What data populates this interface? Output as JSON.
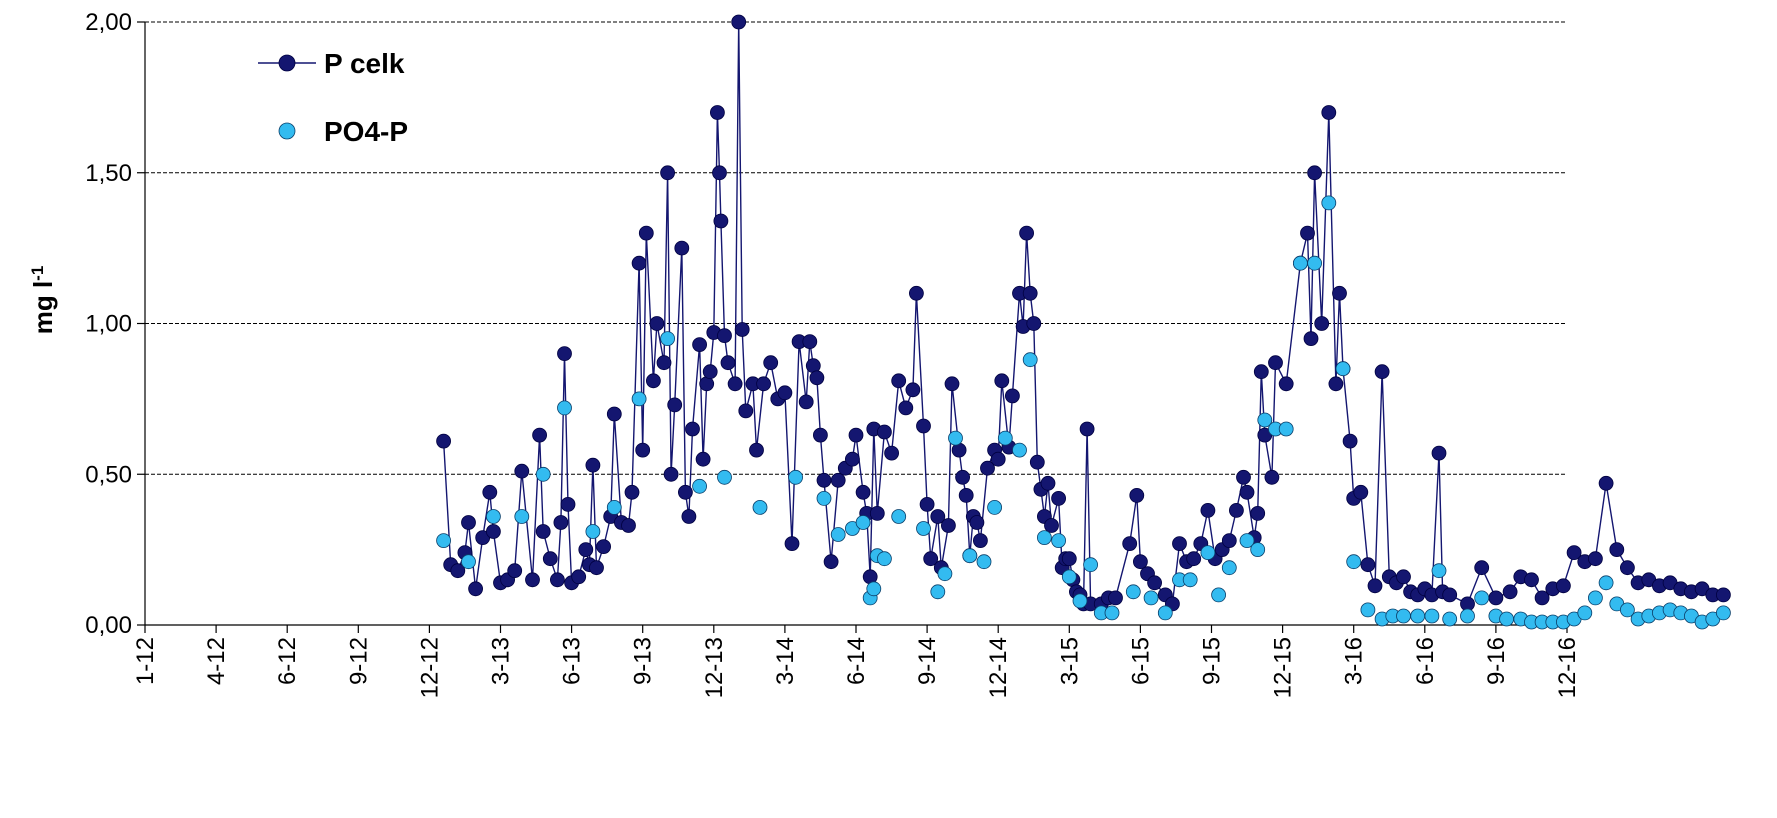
{
  "chart_data": {
    "type": "line",
    "ylabel": "mg l",
    "ylabel_superscript": "-1",
    "ylim": [
      0,
      2
    ],
    "y_ticks": [
      "0,00",
      "0,50",
      "1,00",
      "1,50",
      "2,00"
    ],
    "y_tick_values": [
      0,
      0.5,
      1,
      1.5,
      2
    ],
    "x_ticks": [
      "1-12",
      "4-12",
      "6-12",
      "9-12",
      "12-12",
      "3-13",
      "6-13",
      "9-13",
      "12-13",
      "3-14",
      "6-14",
      "9-14",
      "12-14",
      "3-15",
      "6-15",
      "9-15",
      "12-15",
      "3-16",
      "6-16",
      "9-16",
      "12-16"
    ],
    "grid": "horizontal dashed at 0.5 intervals",
    "legend": "top-left",
    "colors": {
      "p_celk": "#141670",
      "po4_p": "#33bbf0"
    },
    "series": [
      {
        "name": "P celk",
        "style": "line-with-markers",
        "points": [
          [
            4.2,
            0.61
          ],
          [
            4.3,
            0.2
          ],
          [
            4.4,
            0.18
          ],
          [
            4.5,
            0.24
          ],
          [
            4.55,
            0.34
          ],
          [
            4.65,
            0.12
          ],
          [
            4.75,
            0.29
          ],
          [
            4.85,
            0.44
          ],
          [
            4.9,
            0.31
          ],
          [
            5.0,
            0.14
          ],
          [
            5.1,
            0.15
          ],
          [
            5.2,
            0.18
          ],
          [
            5.3,
            0.51
          ],
          [
            5.45,
            0.15
          ],
          [
            5.55,
            0.63
          ],
          [
            5.6,
            0.31
          ],
          [
            5.7,
            0.22
          ],
          [
            5.8,
            0.15
          ],
          [
            5.85,
            0.34
          ],
          [
            5.9,
            0.9
          ],
          [
            5.95,
            0.4
          ],
          [
            6.0,
            0.14
          ],
          [
            6.1,
            0.16
          ],
          [
            6.2,
            0.25
          ],
          [
            6.25,
            0.2
          ],
          [
            6.3,
            0.53
          ],
          [
            6.35,
            0.19
          ],
          [
            6.45,
            0.26
          ],
          [
            6.55,
            0.36
          ],
          [
            6.6,
            0.7
          ],
          [
            6.7,
            0.34
          ],
          [
            6.8,
            0.33
          ],
          [
            6.85,
            0.44
          ],
          [
            6.95,
            1.2
          ],
          [
            7.0,
            0.58
          ],
          [
            7.05,
            1.3
          ],
          [
            7.15,
            0.81
          ],
          [
            7.2,
            1.0
          ],
          [
            7.3,
            0.87
          ],
          [
            7.35,
            1.5
          ],
          [
            7.4,
            0.5
          ],
          [
            7.45,
            0.73
          ],
          [
            7.55,
            1.25
          ],
          [
            7.6,
            0.44
          ],
          [
            7.65,
            0.36
          ],
          [
            7.7,
            0.65
          ],
          [
            7.8,
            0.93
          ],
          [
            7.85,
            0.55
          ],
          [
            7.9,
            0.8
          ],
          [
            7.95,
            0.84
          ],
          [
            8.0,
            0.97
          ],
          [
            8.05,
            1.7
          ],
          [
            8.08,
            1.5
          ],
          [
            8.1,
            1.34
          ],
          [
            8.15,
            0.96
          ],
          [
            8.2,
            0.87
          ],
          [
            8.3,
            0.8
          ],
          [
            8.35,
            2.0
          ],
          [
            8.4,
            0.98
          ],
          [
            8.45,
            0.71
          ],
          [
            8.55,
            0.8
          ],
          [
            8.6,
            0.58
          ],
          [
            8.7,
            0.8
          ],
          [
            8.8,
            0.87
          ],
          [
            8.9,
            0.75
          ],
          [
            9.0,
            0.77
          ],
          [
            9.1,
            0.27
          ],
          [
            9.2,
            0.94
          ],
          [
            9.3,
            0.74
          ],
          [
            9.35,
            0.94
          ],
          [
            9.4,
            0.86
          ],
          [
            9.45,
            0.82
          ],
          [
            9.5,
            0.63
          ],
          [
            9.55,
            0.48
          ],
          [
            9.65,
            0.21
          ],
          [
            9.75,
            0.48
          ],
          [
            9.85,
            0.52
          ],
          [
            9.95,
            0.55
          ],
          [
            10.0,
            0.63
          ],
          [
            10.1,
            0.44
          ],
          [
            10.15,
            0.37
          ],
          [
            10.2,
            0.16
          ],
          [
            10.25,
            0.65
          ],
          [
            10.3,
            0.37
          ],
          [
            10.4,
            0.64
          ],
          [
            10.5,
            0.57
          ],
          [
            10.6,
            0.81
          ],
          [
            10.7,
            0.72
          ],
          [
            10.8,
            0.78
          ],
          [
            10.85,
            1.1
          ],
          [
            10.95,
            0.66
          ],
          [
            11.0,
            0.4
          ],
          [
            11.05,
            0.22
          ],
          [
            11.15,
            0.36
          ],
          [
            11.2,
            0.19
          ],
          [
            11.3,
            0.33
          ],
          [
            11.35,
            0.8
          ],
          [
            11.45,
            0.58
          ],
          [
            11.5,
            0.49
          ],
          [
            11.55,
            0.43
          ],
          [
            11.6,
            0.23
          ],
          [
            11.65,
            0.36
          ],
          [
            11.7,
            0.34
          ],
          [
            11.75,
            0.28
          ],
          [
            11.85,
            0.52
          ],
          [
            11.95,
            0.58
          ],
          [
            12.0,
            0.55
          ],
          [
            12.05,
            0.81
          ],
          [
            12.15,
            0.59
          ],
          [
            12.2,
            0.76
          ],
          [
            12.3,
            1.1
          ],
          [
            12.35,
            0.99
          ],
          [
            12.4,
            1.3
          ],
          [
            12.45,
            1.1
          ],
          [
            12.5,
            1.0
          ],
          [
            12.55,
            0.54
          ],
          [
            12.6,
            0.45
          ],
          [
            12.65,
            0.36
          ],
          [
            12.7,
            0.47
          ],
          [
            12.75,
            0.33
          ],
          [
            12.85,
            0.42
          ],
          [
            12.9,
            0.19
          ],
          [
            12.95,
            0.22
          ],
          [
            13.0,
            0.22
          ],
          [
            13.05,
            0.15
          ],
          [
            13.1,
            0.11
          ],
          [
            13.15,
            0.1
          ],
          [
            13.2,
            0.07
          ],
          [
            13.25,
            0.65
          ],
          [
            13.3,
            0.07
          ],
          [
            13.45,
            0.07
          ],
          [
            13.55,
            0.09
          ],
          [
            13.65,
            0.09
          ],
          [
            13.85,
            0.27
          ],
          [
            13.95,
            0.43
          ],
          [
            14.0,
            0.21
          ],
          [
            14.1,
            0.17
          ],
          [
            14.2,
            0.14
          ],
          [
            14.35,
            0.1
          ],
          [
            14.45,
            0.07
          ],
          [
            14.55,
            0.27
          ],
          [
            14.65,
            0.21
          ],
          [
            14.75,
            0.22
          ],
          [
            14.85,
            0.27
          ],
          [
            14.95,
            0.38
          ],
          [
            15.05,
            0.22
          ],
          [
            15.15,
            0.25
          ],
          [
            15.25,
            0.28
          ],
          [
            15.35,
            0.38
          ],
          [
            15.45,
            0.49
          ],
          [
            15.5,
            0.44
          ],
          [
            15.6,
            0.29
          ],
          [
            15.65,
            0.37
          ],
          [
            15.7,
            0.84
          ],
          [
            15.75,
            0.63
          ],
          [
            15.85,
            0.49
          ],
          [
            15.9,
            0.87
          ],
          [
            16.05,
            0.8
          ],
          [
            16.25,
            1.2
          ],
          [
            16.35,
            1.3
          ],
          [
            16.4,
            0.95
          ],
          [
            16.45,
            1.5
          ],
          [
            16.55,
            1.0
          ],
          [
            16.65,
            1.7
          ],
          [
            16.75,
            0.8
          ],
          [
            16.8,
            1.1
          ],
          [
            16.85,
            0.85
          ],
          [
            16.95,
            0.61
          ],
          [
            17.0,
            0.42
          ],
          [
            17.1,
            0.44
          ],
          [
            17.2,
            0.2
          ],
          [
            17.3,
            0.13
          ],
          [
            17.4,
            0.84
          ],
          [
            17.5,
            0.16
          ],
          [
            17.6,
            0.14
          ],
          [
            17.7,
            0.16
          ],
          [
            17.8,
            0.11
          ],
          [
            17.9,
            0.1
          ],
          [
            18.0,
            0.12
          ],
          [
            18.1,
            0.1
          ],
          [
            18.2,
            0.57
          ],
          [
            18.25,
            0.11
          ],
          [
            18.35,
            0.1
          ],
          [
            18.6,
            0.07
          ],
          [
            18.8,
            0.19
          ],
          [
            19.0,
            0.09
          ],
          [
            19.2,
            0.11
          ],
          [
            19.35,
            0.16
          ],
          [
            19.5,
            0.15
          ],
          [
            19.65,
            0.09
          ],
          [
            19.8,
            0.12
          ],
          [
            19.95,
            0.13
          ],
          [
            20.1,
            0.24
          ],
          [
            20.25,
            0.21
          ],
          [
            20.4,
            0.22
          ],
          [
            20.55,
            0.47
          ],
          [
            20.7,
            0.25
          ],
          [
            20.85,
            0.19
          ],
          [
            21.0,
            0.14
          ],
          [
            21.15,
            0.15
          ],
          [
            21.3,
            0.13
          ],
          [
            21.45,
            0.14
          ],
          [
            21.6,
            0.12
          ],
          [
            21.75,
            0.11
          ],
          [
            21.9,
            0.12
          ],
          [
            22.05,
            0.1
          ],
          [
            22.2,
            0.1
          ]
        ]
      },
      {
        "name": "PO4-P",
        "style": "markers-only",
        "points": [
          [
            4.2,
            0.28
          ],
          [
            4.55,
            0.21
          ],
          [
            4.9,
            0.36
          ],
          [
            5.3,
            0.36
          ],
          [
            5.6,
            0.5
          ],
          [
            5.9,
            0.72
          ],
          [
            6.3,
            0.31
          ],
          [
            6.6,
            0.39
          ],
          [
            6.95,
            0.75
          ],
          [
            7.35,
            0.95
          ],
          [
            7.8,
            0.46
          ],
          [
            8.15,
            0.49
          ],
          [
            8.65,
            0.39
          ],
          [
            9.15,
            0.49
          ],
          [
            9.55,
            0.42
          ],
          [
            9.75,
            0.3
          ],
          [
            9.95,
            0.32
          ],
          [
            10.1,
            0.34
          ],
          [
            10.2,
            0.09
          ],
          [
            10.25,
            0.12
          ],
          [
            10.3,
            0.23
          ],
          [
            10.4,
            0.22
          ],
          [
            10.6,
            0.36
          ],
          [
            10.95,
            0.32
          ],
          [
            11.15,
            0.11
          ],
          [
            11.25,
            0.17
          ],
          [
            11.4,
            0.62
          ],
          [
            11.6,
            0.23
          ],
          [
            11.8,
            0.21
          ],
          [
            11.95,
            0.39
          ],
          [
            12.1,
            0.62
          ],
          [
            12.3,
            0.58
          ],
          [
            12.45,
            0.88
          ],
          [
            12.65,
            0.29
          ],
          [
            12.85,
            0.28
          ],
          [
            13.0,
            0.16
          ],
          [
            13.15,
            0.08
          ],
          [
            13.3,
            0.2
          ],
          [
            13.45,
            0.04
          ],
          [
            13.6,
            0.04
          ],
          [
            13.9,
            0.11
          ],
          [
            14.15,
            0.09
          ],
          [
            14.35,
            0.04
          ],
          [
            14.55,
            0.15
          ],
          [
            14.7,
            0.15
          ],
          [
            14.95,
            0.24
          ],
          [
            15.1,
            0.1
          ],
          [
            15.25,
            0.19
          ],
          [
            15.5,
            0.28
          ],
          [
            15.65,
            0.25
          ],
          [
            15.75,
            0.68
          ],
          [
            15.9,
            0.65
          ],
          [
            16.05,
            0.65
          ],
          [
            16.25,
            1.2
          ],
          [
            16.45,
            1.2
          ],
          [
            16.65,
            1.4
          ],
          [
            16.85,
            0.85
          ],
          [
            17.0,
            0.21
          ],
          [
            17.2,
            0.05
          ],
          [
            17.4,
            0.02
          ],
          [
            17.55,
            0.03
          ],
          [
            17.7,
            0.03
          ],
          [
            17.9,
            0.03
          ],
          [
            18.1,
            0.03
          ],
          [
            18.2,
            0.18
          ],
          [
            18.35,
            0.02
          ],
          [
            18.6,
            0.03
          ],
          [
            18.8,
            0.09
          ],
          [
            19.0,
            0.03
          ],
          [
            19.15,
            0.02
          ],
          [
            19.35,
            0.02
          ],
          [
            19.5,
            0.01
          ],
          [
            19.65,
            0.01
          ],
          [
            19.8,
            0.01
          ],
          [
            19.95,
            0.01
          ],
          [
            20.1,
            0.02
          ],
          [
            20.25,
            0.04
          ],
          [
            20.4,
            0.09
          ],
          [
            20.55,
            0.14
          ],
          [
            20.7,
            0.07
          ],
          [
            20.85,
            0.05
          ],
          [
            21.0,
            0.02
          ],
          [
            21.15,
            0.03
          ],
          [
            21.3,
            0.04
          ],
          [
            21.45,
            0.05
          ],
          [
            21.6,
            0.04
          ],
          [
            21.75,
            0.03
          ],
          [
            21.9,
            0.01
          ],
          [
            22.05,
            0.02
          ],
          [
            22.2,
            0.04
          ]
        ]
      }
    ]
  }
}
